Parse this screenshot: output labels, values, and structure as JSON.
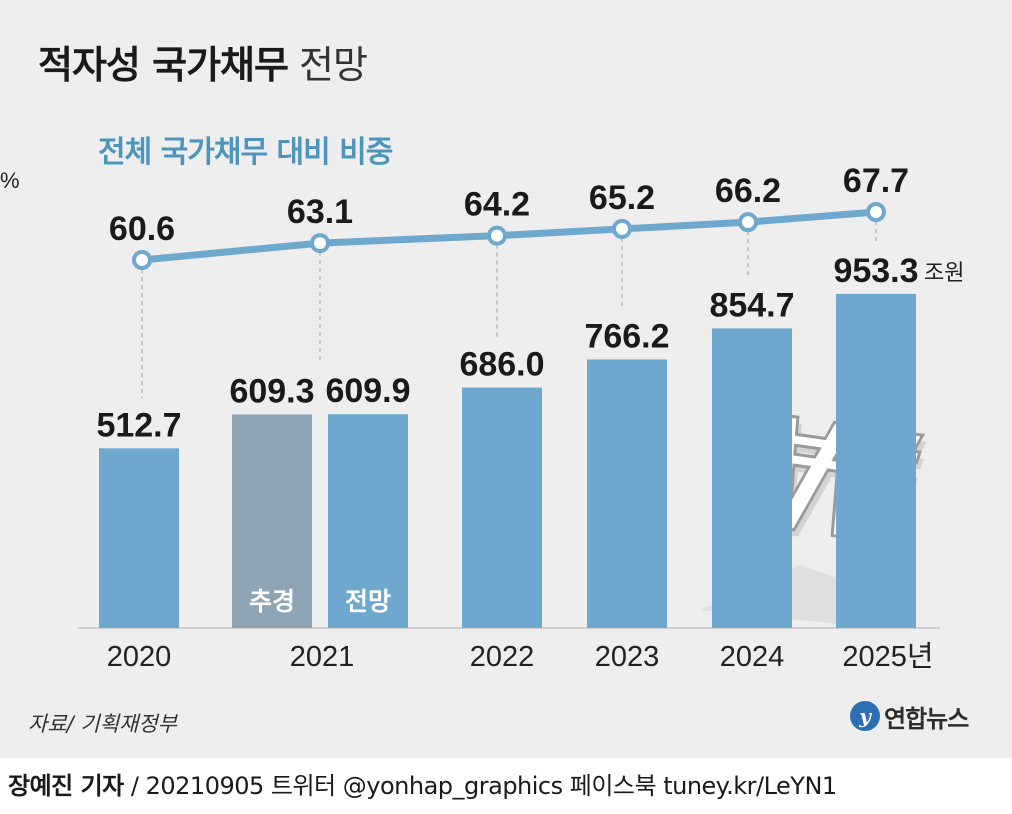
{
  "header": {
    "title_bold": "적자성 국가채무",
    "title_light": "전망"
  },
  "chart_data": {
    "type": "bar",
    "title": "적자성 국가채무 전망",
    "categories": [
      "2020",
      "2021",
      "2021",
      "2022",
      "2023",
      "2024",
      "2025"
    ],
    "category_labels": [
      "2020",
      "2021",
      "2022",
      "2023",
      "2024",
      "2025년"
    ],
    "bar_labels": [
      "",
      "추경",
      "전망",
      "",
      "",
      "",
      ""
    ],
    "bar_value_labels": [
      "512.7",
      "609.3",
      "609.9",
      "686.0",
      "766.2",
      "854.7",
      "953.3"
    ],
    "values": [
      512.7,
      609.3,
      609.9,
      686.0,
      766.2,
      854.7,
      953.3
    ],
    "value_unit": "조원",
    "colors": {
      "bar": "#6fa8ce",
      "bar_supplementary": "#8ea3b4",
      "line": "#6fa8ce",
      "point_fill": "#ffffff"
    },
    "line_series": {
      "name": "전체 국가채무 대비 비중",
      "x": [
        "2020",
        "2021",
        "2022",
        "2023",
        "2024",
        "2025"
      ],
      "values": [
        60.6,
        63.1,
        64.2,
        65.2,
        66.2,
        67.7
      ],
      "value_labels": [
        "60.6",
        "63.1",
        "64.2",
        "65.2",
        "66.2",
        "67.7"
      ],
      "unit": "%"
    },
    "grid": false,
    "legend": "none"
  },
  "footer": {
    "source": "자료/ 기획재정부",
    "logo_text": "연합뉴스",
    "author": "장예진 기자",
    "credit_rest": " / 20210905 트위터 @yonhap_graphics  페이스북 tuney.kr/LeYN1"
  }
}
